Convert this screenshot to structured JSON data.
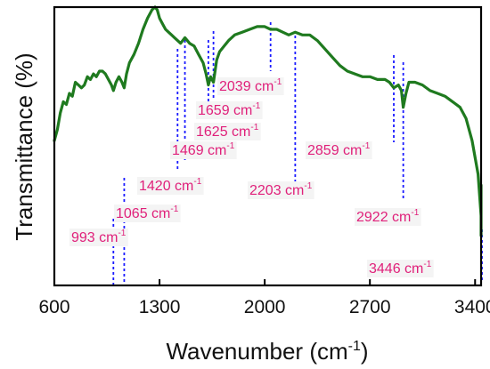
{
  "chart_data": {
    "type": "line",
    "xlabel": "Wavenumber (cm",
    "xlabel_sup": "-1",
    "xlabel_suffix": ")",
    "ylabel": "Transmittance (%)",
    "xlim": [
      600,
      3440
    ],
    "ylim": [
      0,
      100
    ],
    "xticks": [
      600,
      1300,
      2000,
      2700,
      3400
    ],
    "yticks_shown": false,
    "grid": false,
    "series": [
      {
        "color": "#1f7a1f",
        "x": [
          600,
          620,
          640,
          660,
          680,
          700,
          720,
          740,
          760,
          780,
          800,
          820,
          840,
          860,
          880,
          900,
          920,
          940,
          960,
          980,
          993,
          1010,
          1030,
          1050,
          1065,
          1080,
          1100,
          1130,
          1160,
          1190,
          1220,
          1250,
          1270,
          1285,
          1300,
          1320,
          1340,
          1360,
          1380,
          1400,
          1420,
          1440,
          1469,
          1500,
          1530,
          1560,
          1590,
          1610,
          1625,
          1640,
          1659,
          1680,
          1700,
          1730,
          1760,
          1800,
          1850,
          1900,
          1950,
          2000,
          2039,
          2080,
          2120,
          2160,
          2203,
          2250,
          2300,
          2350,
          2400,
          2450,
          2500,
          2550,
          2600,
          2650,
          2700,
          2750,
          2800,
          2830,
          2859,
          2890,
          2910,
          2922,
          2940,
          2960,
          3000,
          3050,
          3100,
          3150,
          3200,
          3250,
          3300,
          3340,
          3380,
          3420,
          3446,
          3470,
          3490,
          3510,
          3530,
          3540
        ],
        "y": [
          52,
          56,
          62,
          66,
          65,
          69,
          68,
          73,
          72,
          71,
          72,
          75,
          74,
          76,
          75,
          77,
          77,
          76,
          74,
          72,
          70,
          73,
          75,
          73,
          71,
          76,
          80,
          83,
          87,
          92,
          96,
          99,
          100,
          99,
          96,
          94,
          92,
          91,
          90,
          89,
          88,
          87,
          89,
          87,
          86,
          83,
          80,
          76,
          72,
          75,
          73,
          81,
          84,
          86,
          88,
          90,
          91,
          92,
          93,
          93,
          92,
          92,
          91,
          90,
          91,
          90,
          90,
          88,
          85,
          82,
          79,
          77,
          76,
          75,
          75,
          74,
          74,
          73,
          71,
          72,
          70,
          64,
          69,
          73,
          73,
          72,
          70,
          69,
          68,
          66,
          64,
          60,
          52,
          40,
          25,
          18,
          20,
          30,
          35,
          36
        ]
      }
    ],
    "annotations": [
      {
        "value": 993,
        "text": "993 cm",
        "sup": "-1"
      },
      {
        "value": 1065,
        "text": "1065 cm",
        "sup": "-1"
      },
      {
        "value": 1420,
        "text": "1420 cm",
        "sup": "-1"
      },
      {
        "value": 1469,
        "text": "1469 cm",
        "sup": "-1"
      },
      {
        "value": 1625,
        "text": "1625 cm",
        "sup": "-1"
      },
      {
        "value": 1659,
        "text": "1659 cm",
        "sup": "-1"
      },
      {
        "value": 2039,
        "text": "2039 cm",
        "sup": "-1"
      },
      {
        "value": 2203,
        "text": "2203 cm",
        "sup": "-1"
      },
      {
        "value": 2859,
        "text": "2859 cm",
        "sup": "-1"
      },
      {
        "value": 2922,
        "text": "2922 cm",
        "sup": "-1"
      },
      {
        "value": 3446,
        "text": "3446 cm",
        "sup": "-1"
      }
    ],
    "colors": {
      "line": "#1f7a1f",
      "marker_lines": "#1a1aff",
      "annotation_text": "#e0207a",
      "axis": "#000000"
    }
  }
}
